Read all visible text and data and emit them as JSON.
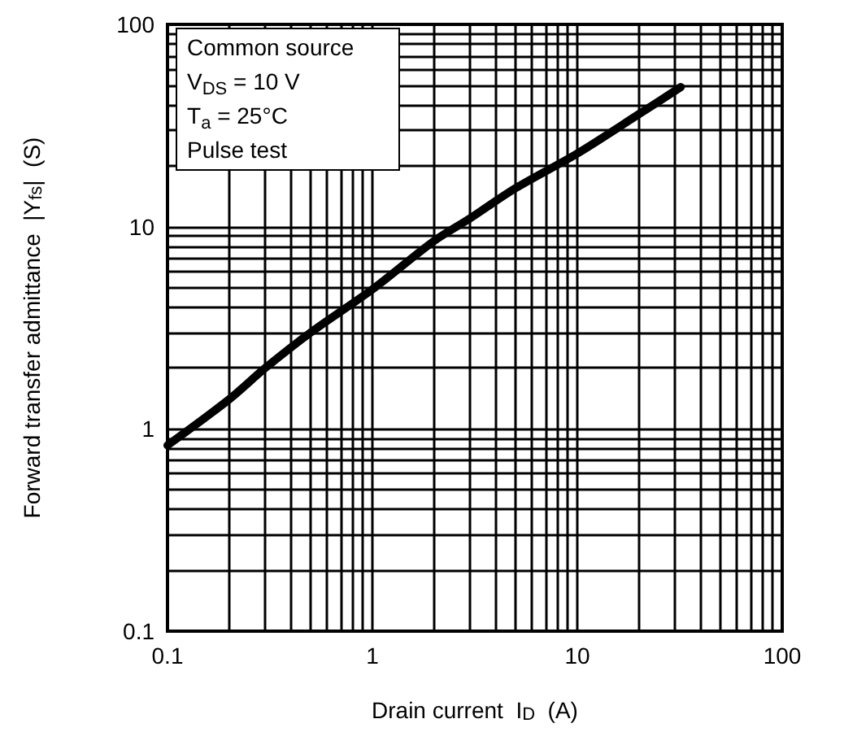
{
  "chart_data": {
    "type": "line",
    "xlabel": "Drain current  I$_{D}$  (A)",
    "ylabel": "Forward transfer admittance  |Y$_{fs}$|  (S)",
    "annotations": [
      "Common source",
      "V$_{DS}$ = 10 V",
      "T$_{a}$ = 25°C",
      "Pulse test"
    ],
    "x": [
      0.1,
      0.2,
      0.3,
      0.5,
      1,
      2,
      3,
      5,
      10,
      20,
      32
    ],
    "series": [
      {
        "color": "#000000",
        "values": [
          0.83,
          1.4,
          2.0,
          3.0,
          4.9,
          8.5,
          11,
          15.5,
          23,
          36,
          49
        ]
      }
    ],
    "xlim": [
      0.1,
      100
    ],
    "ylim": [
      0.1,
      100
    ],
    "xticks": [
      0.1,
      1,
      10,
      100
    ],
    "yticks": [
      0.1,
      1,
      10,
      100
    ],
    "log": "xy",
    "grid": true,
    "marker": "none",
    "line_style": "solid"
  }
}
